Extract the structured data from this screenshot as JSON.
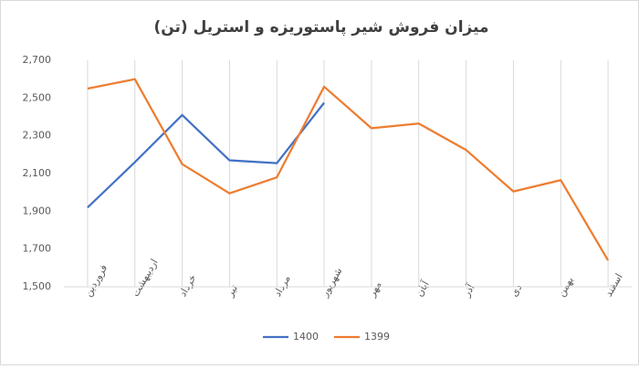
{
  "chart_data": {
    "type": "line",
    "title": "میزان فروش شیر پاستوریزه و استریل (تن)",
    "categories": [
      "فروردین",
      "اردیبهشت",
      "خرداد",
      "تیر",
      "مرداد",
      "شهریور",
      "مهر",
      "آبان",
      "آذر",
      "دی",
      "بهمن",
      "اسفند"
    ],
    "series": [
      {
        "name": "1400",
        "color": "#4472c4",
        "values": [
          1920,
          2160,
          2410,
          2170,
          2155,
          2475,
          null,
          null,
          null,
          null,
          null,
          null
        ]
      },
      {
        "name": "1399",
        "color": "#ed7d31",
        "values": [
          2550,
          2600,
          2150,
          1995,
          2080,
          2560,
          2340,
          2365,
          2225,
          2005,
          2065,
          1640
        ]
      }
    ],
    "ylim": [
      1500,
      2700
    ],
    "yticks": [
      {
        "value": 1500,
        "label": "1,500"
      },
      {
        "value": 1700,
        "label": "1,700"
      },
      {
        "value": 1900,
        "label": "1,900"
      },
      {
        "value": 2100,
        "label": "2,100"
      },
      {
        "value": 2300,
        "label": "2,300"
      },
      {
        "value": 2500,
        "label": "2,500"
      },
      {
        "value": 2700,
        "label": "2,700"
      }
    ],
    "grid": "x",
    "legend": "bottom"
  }
}
